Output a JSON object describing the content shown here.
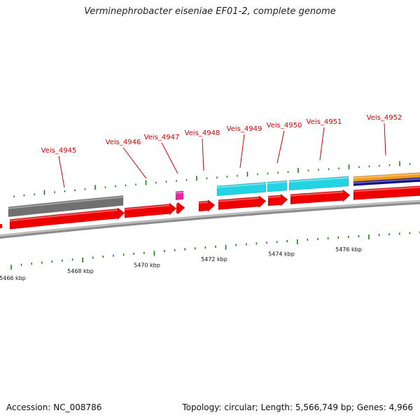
{
  "title": "Verminephrobacter eiseniae EF01-2, complete genome",
  "footer": {
    "accession": "Accession: NC_008786",
    "summary": "Topology: circular; Length: 5,566,749 bp; Genes: 4,966"
  },
  "colors": {
    "cds": "#ee0000",
    "gray_feature": "#707070",
    "cyan_feature": "#22d3e3",
    "magenta_feature": "#ee22aa",
    "orange_feature": "#f39a1a",
    "navy_feature": "#111188",
    "label": "#d40000",
    "tick": "#117711",
    "backbone": "#8a8a8a"
  },
  "gene_labels": [
    "Veis_4945",
    "Veis_4946",
    "Veis_4947",
    "Veis_4948",
    "Veis_4949",
    "Veis_4950",
    "Veis_4951",
    "Veis_4952"
  ],
  "kbp_labels": [
    "5466 kbp",
    "5468 kbp",
    "5470 kbp",
    "5472 kbp",
    "5474 kbp",
    "5476 kbp"
  ]
}
